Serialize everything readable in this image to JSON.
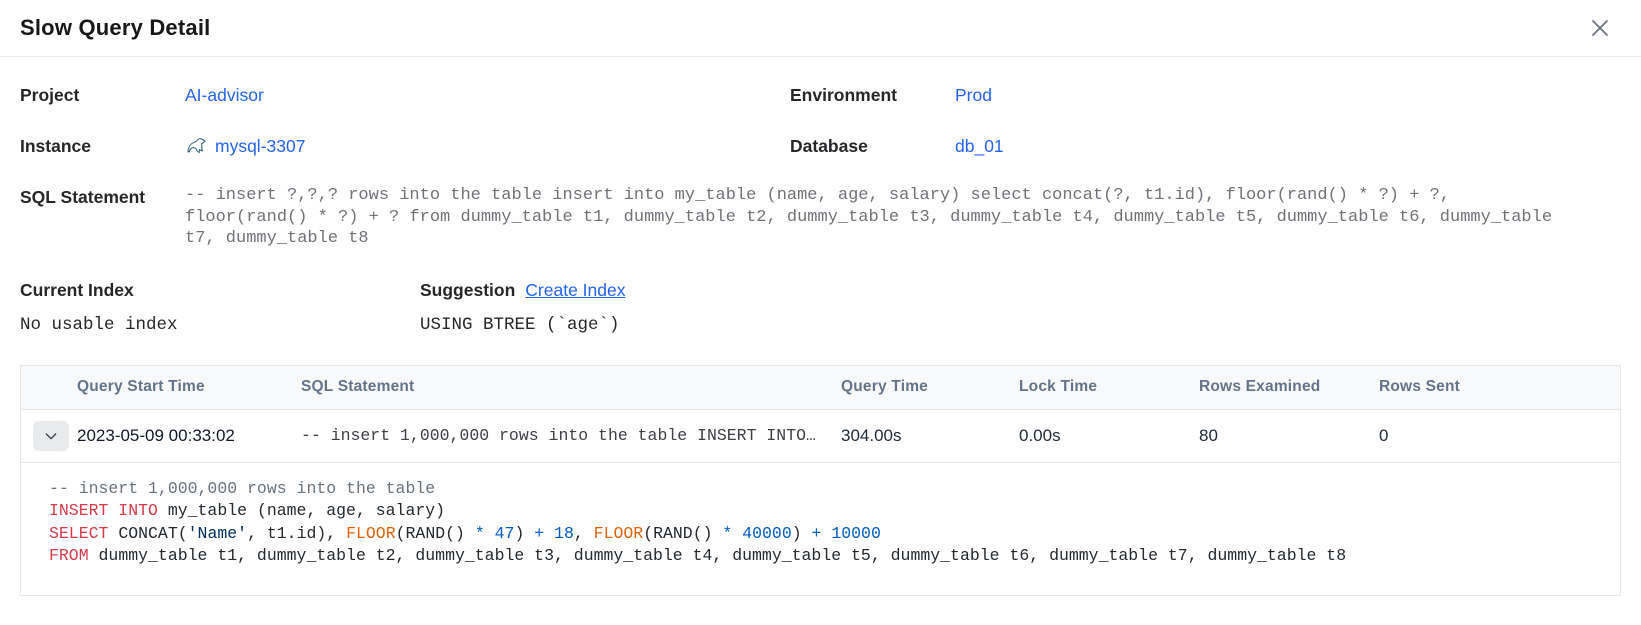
{
  "modal": {
    "title": "Slow Query Detail"
  },
  "icons": {
    "close": "close-icon (x glyph)",
    "instance_engine": "mysql-dolphin-icon",
    "row_expand": "chevron-down-icon"
  },
  "colors": {
    "link": "#2563eb",
    "sql_keyword": "#d73a49",
    "sql_builtin": "#e36209",
    "sql_string": "#032f62",
    "sql_number": "#005cc5",
    "sql_comment": "#6a737d"
  },
  "info": {
    "project": {
      "label": "Project",
      "value": "AI-advisor"
    },
    "environment": {
      "label": "Environment",
      "value": "Prod"
    },
    "instance": {
      "label": "Instance",
      "value": "mysql-3307"
    },
    "database": {
      "label": "Database",
      "value": "db_01"
    },
    "sql_statement": {
      "label": "SQL Statement",
      "value": "-- insert ?,?,? rows into the table insert into my_table (name, age, salary) select concat(?, t1.id), floor(rand() * ?) + ?, floor(rand() * ?) + ? from dummy_table t1, dummy_table t2, dummy_table t3, dummy_table t4, dummy_table t5, dummy_table t6, dummy_table t7, dummy_table t8"
    },
    "current_index": {
      "label": "Current Index",
      "value": "No usable index"
    },
    "suggestion": {
      "label": "Suggestion",
      "link_label": "Create Index",
      "value": "USING BTREE (`age`)"
    }
  },
  "table": {
    "headers": [
      "Query Start Time",
      "SQL Statement",
      "Query Time",
      "Lock Time",
      "Rows Examined",
      "Rows Sent"
    ],
    "row": {
      "query_start_time": "2023-05-09 00:33:02",
      "sql_preview": "-- insert 1,000,000 rows into the table INSERT INTO…",
      "query_time": "304.00s",
      "lock_time": "0.00s",
      "rows_examined": "80",
      "rows_sent": "0"
    },
    "expanded_sql": {
      "lines": [
        [
          {
            "t": "-- insert 1,000,000 rows into the table",
            "c": "comment"
          }
        ],
        [
          {
            "t": "INSERT INTO",
            "c": "kw"
          },
          {
            "t": " my_table (name, age, salary)",
            "c": "plain"
          }
        ],
        [
          {
            "t": "SELECT",
            "c": "kw"
          },
          {
            "t": " CONCAT(",
            "c": "plain"
          },
          {
            "t": "'Name'",
            "c": "str"
          },
          {
            "t": ", t1.id), ",
            "c": "plain"
          },
          {
            "t": "FLOOR",
            "c": "fn"
          },
          {
            "t": "(RAND() ",
            "c": "plain"
          },
          {
            "t": "* 47",
            "c": "num"
          },
          {
            "t": ") ",
            "c": "plain"
          },
          {
            "t": "+ 18",
            "c": "num"
          },
          {
            "t": ", ",
            "c": "plain"
          },
          {
            "t": "FLOOR",
            "c": "fn"
          },
          {
            "t": "(RAND() ",
            "c": "plain"
          },
          {
            "t": "* 40000",
            "c": "num"
          },
          {
            "t": ") ",
            "c": "plain"
          },
          {
            "t": "+ 10000",
            "c": "num"
          }
        ],
        [
          {
            "t": "FROM",
            "c": "kw"
          },
          {
            "t": " dummy_table t1, dummy_table t2, dummy_table t3, dummy_table t4, dummy_table t5, dummy_table t6, dummy_table t7, dummy_table t8",
            "c": "plain"
          }
        ]
      ]
    }
  }
}
